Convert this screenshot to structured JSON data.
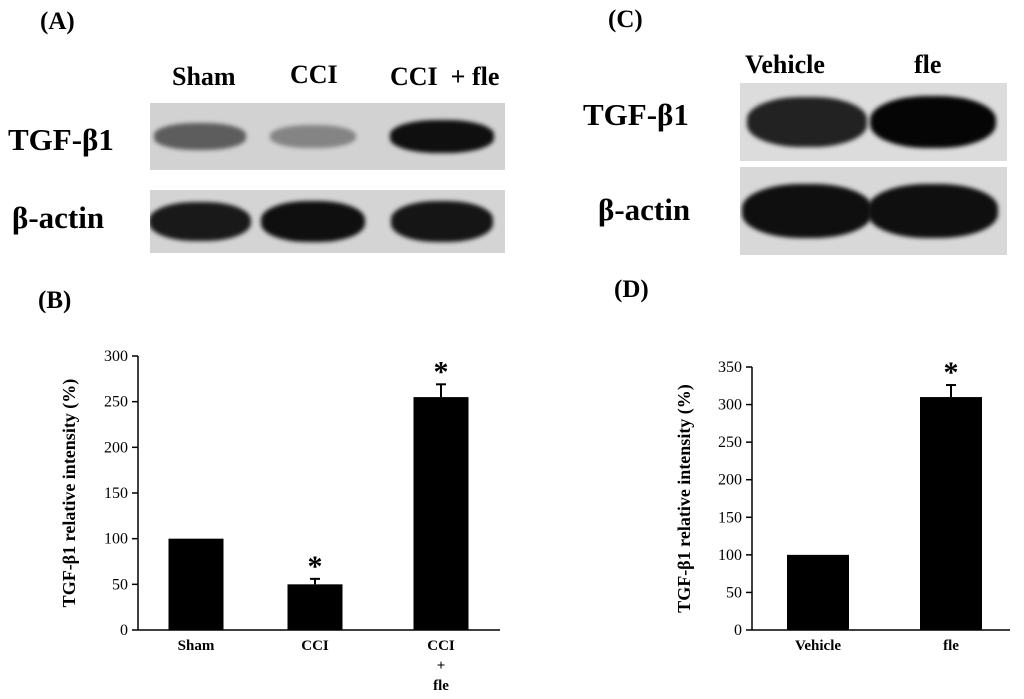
{
  "panels": {
    "a": "(A)",
    "b": "(B)",
    "c": "(C)",
    "d": "(D)"
  },
  "blot_a": {
    "lanes": [
      "Sham",
      "CCI",
      "CCI  + fle"
    ],
    "rows": [
      "TGF-β1",
      "β-actin"
    ],
    "tgf_intensity": [
      0.55,
      0.35,
      0.95
    ],
    "actin_intensity": [
      0.9,
      0.95,
      0.92
    ]
  },
  "blot_c": {
    "lanes": [
      "Vehicle",
      "fle"
    ],
    "rows": [
      "TGF-β1",
      "β-actin"
    ],
    "tgf_intensity": [
      0.85,
      1.0
    ],
    "actin_intensity": [
      0.95,
      0.95
    ]
  },
  "chart_data": [
    {
      "type": "bar",
      "categories": [
        "Sham",
        "CCI",
        "CCI + fle"
      ],
      "category_lines": [
        [
          "Sham"
        ],
        [
          "CCI"
        ],
        [
          "CCI",
          "+",
          "fle"
        ]
      ],
      "values": [
        100,
        50,
        255
      ],
      "errors": [
        0,
        6,
        14
      ],
      "significance": [
        "",
        "*",
        "*"
      ],
      "ylabel": "TGF-β1 relative intensity (%)",
      "ylim": [
        0,
        300
      ],
      "yticks": [
        0,
        50,
        100,
        150,
        200,
        250,
        300
      ],
      "bar_color": "#000000",
      "grid": false
    },
    {
      "type": "bar",
      "categories": [
        "Vehicle",
        "fle"
      ],
      "category_lines": [
        [
          "Vehicle"
        ],
        [
          "fle"
        ]
      ],
      "values": [
        100,
        310
      ],
      "errors": [
        0,
        16
      ],
      "significance": [
        "",
        "*"
      ],
      "ylabel": "TGF-β1 relative intensity (%)",
      "ylim": [
        0,
        350
      ],
      "yticks": [
        0,
        50,
        100,
        150,
        200,
        250,
        300,
        350
      ],
      "bar_color": "#000000",
      "grid": false
    }
  ]
}
